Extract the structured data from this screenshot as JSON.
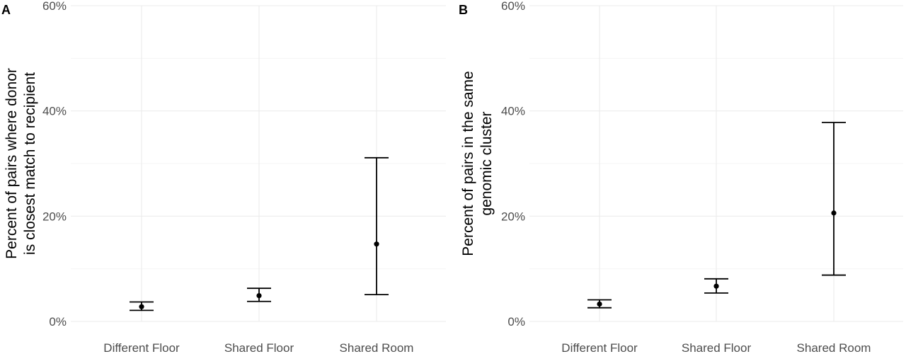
{
  "chart_data": [
    {
      "type": "scatter",
      "panel_label": "A",
      "ylabel_lines": [
        "Percent of pairs where donor",
        "is closest match to recipient"
      ],
      "categories": [
        "Different Floor",
        "Shared Floor",
        "Shared Room"
      ],
      "points": [
        {
          "category": "Different Floor",
          "value": 2.8,
          "lower": 2.1,
          "upper": 3.7
        },
        {
          "category": "Shared Floor",
          "value": 4.9,
          "lower": 3.8,
          "upper": 6.3
        },
        {
          "category": "Shared Room",
          "value": 14.7,
          "lower": 5.1,
          "upper": 31.1
        }
      ],
      "ylim": [
        0,
        60
      ],
      "yticks": [
        0,
        20,
        40,
        60
      ],
      "ytick_labels": [
        "0%",
        "20%",
        "40%",
        "60%"
      ],
      "grid": true,
      "error_bars": true
    },
    {
      "type": "scatter",
      "panel_label": "B",
      "ylabel_lines": [
        "Percent of pairs in the same",
        "genomic cluster"
      ],
      "categories": [
        "Different Floor",
        "Shared Floor",
        "Shared Room"
      ],
      "points": [
        {
          "category": "Different Floor",
          "value": 3.3,
          "lower": 2.6,
          "upper": 4.1
        },
        {
          "category": "Shared Floor",
          "value": 6.7,
          "lower": 5.4,
          "upper": 8.1
        },
        {
          "category": "Shared Room",
          "value": 20.6,
          "lower": 8.8,
          "upper": 37.8
        }
      ],
      "ylim": [
        0,
        60
      ],
      "yticks": [
        0,
        20,
        40,
        60
      ],
      "ytick_labels": [
        "0%",
        "20%",
        "40%",
        "60%"
      ],
      "grid": true,
      "error_bars": true
    }
  ]
}
